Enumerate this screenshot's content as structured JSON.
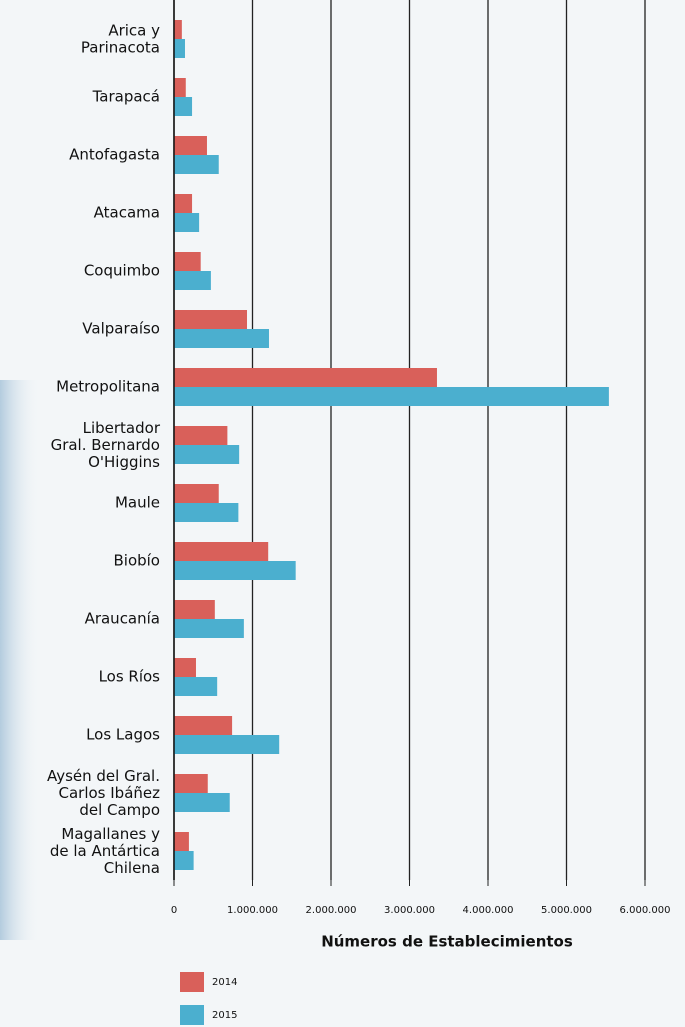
{
  "chart_data": {
    "type": "bar",
    "orientation": "horizontal",
    "categories": [
      "Arica y\nParinacota",
      "Tarapacá",
      "Antofagasta",
      "Atacama",
      "Coquimbo",
      "Valparaíso",
      "Metropolitana",
      "Libertador\nGral. Bernardo\nO'Higgins",
      "Maule",
      "Biobío",
      "Araucanía",
      "Los Ríos",
      "Los Lagos",
      "Aysén del Gral.\nCarlos Ibáñez\ndel Campo",
      "Magallanes y\nde la Antártica\nChilena"
    ],
    "series": [
      {
        "name": "2014",
        "color": "#d9605a",
        "values": [
          100000,
          150000,
          420000,
          230000,
          340000,
          930000,
          3350000,
          680000,
          570000,
          1200000,
          520000,
          280000,
          740000,
          430000,
          190000
        ]
      },
      {
        "name": "2015",
        "color": "#4bafcf",
        "values": [
          140000,
          230000,
          570000,
          320000,
          470000,
          1210000,
          5540000,
          830000,
          820000,
          1550000,
          890000,
          550000,
          1340000,
          710000,
          250000
        ]
      }
    ],
    "xlabel": "Números de Establecimientos",
    "xlim": [
      0,
      6000000
    ],
    "xticks": [
      0,
      {
        "value": 1000000,
        "label": "1.000.000"
      },
      {
        "value": 2000000,
        "label": "2.000.000"
      },
      {
        "value": 3000000,
        "label": "3.000.000"
      },
      {
        "value": 4000000,
        "label": "4.000.000"
      },
      {
        "value": 5000000,
        "label": "5.000.000"
      },
      {
        "value": 6000000,
        "label": "6.000.000"
      }
    ],
    "grid": true
  }
}
